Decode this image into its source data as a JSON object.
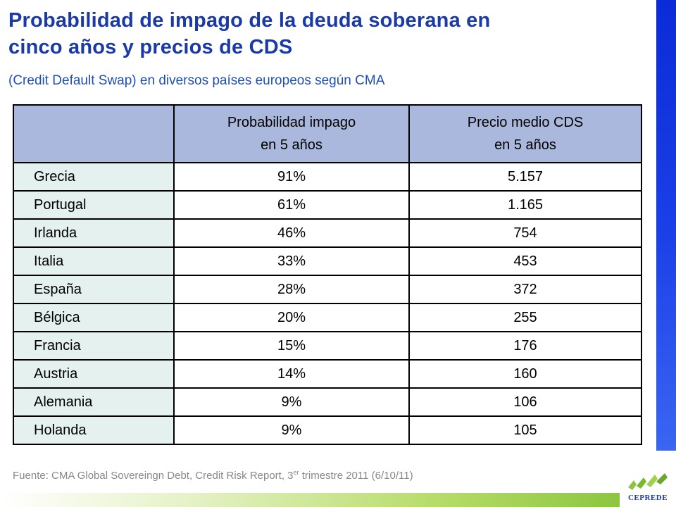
{
  "title": {
    "line1": "Probabilidad de impago de la deuda soberana en",
    "line2": "cinco años y precios de CDS",
    "subtitle": "(Credit Default Swap) en diversos países europeos según CMA"
  },
  "table": {
    "header": {
      "prob_line1": "Probabilidad impago",
      "prob_line2": "en 5 años",
      "cds_line1": "Precio medio CDS",
      "cds_line2": "en 5 años"
    },
    "rows": [
      {
        "country": "Grecia",
        "prob": "91%",
        "cds": "5.157"
      },
      {
        "country": "Portugal",
        "prob": "61%",
        "cds": "1.165"
      },
      {
        "country": "Irlanda",
        "prob": "46%",
        "cds": "754"
      },
      {
        "country": "Italia",
        "prob": "33%",
        "cds": "453"
      },
      {
        "country": "España",
        "prob": "28%",
        "cds": "372"
      },
      {
        "country": "Bélgica",
        "prob": "20%",
        "cds": "255"
      },
      {
        "country": "Francia",
        "prob": "15%",
        "cds": "176"
      },
      {
        "country": "Austria",
        "prob": "14%",
        "cds": "160"
      },
      {
        "country": "Alemania",
        "prob": "9%",
        "cds": "106"
      },
      {
        "country": "Holanda",
        "prob": "9%",
        "cds": "105"
      }
    ]
  },
  "source": {
    "prefix": "Fuente: CMA Global Sovereingn Debt, Credit Risk Report, 3",
    "sup": "er",
    "suffix": " trimestre 2011 (6/10/11)"
  },
  "logo": {
    "text": "CEPREDE",
    "icon": "ceprede-logo-icon"
  },
  "colors": {
    "title": "#1a3aa8",
    "header_bg": "#a9b8dc",
    "country_bg": "#e4f1ef",
    "right_bar": "#0a2cd8",
    "bottom_bar": "#8cc63f",
    "logo_green": "#8cc63f"
  }
}
